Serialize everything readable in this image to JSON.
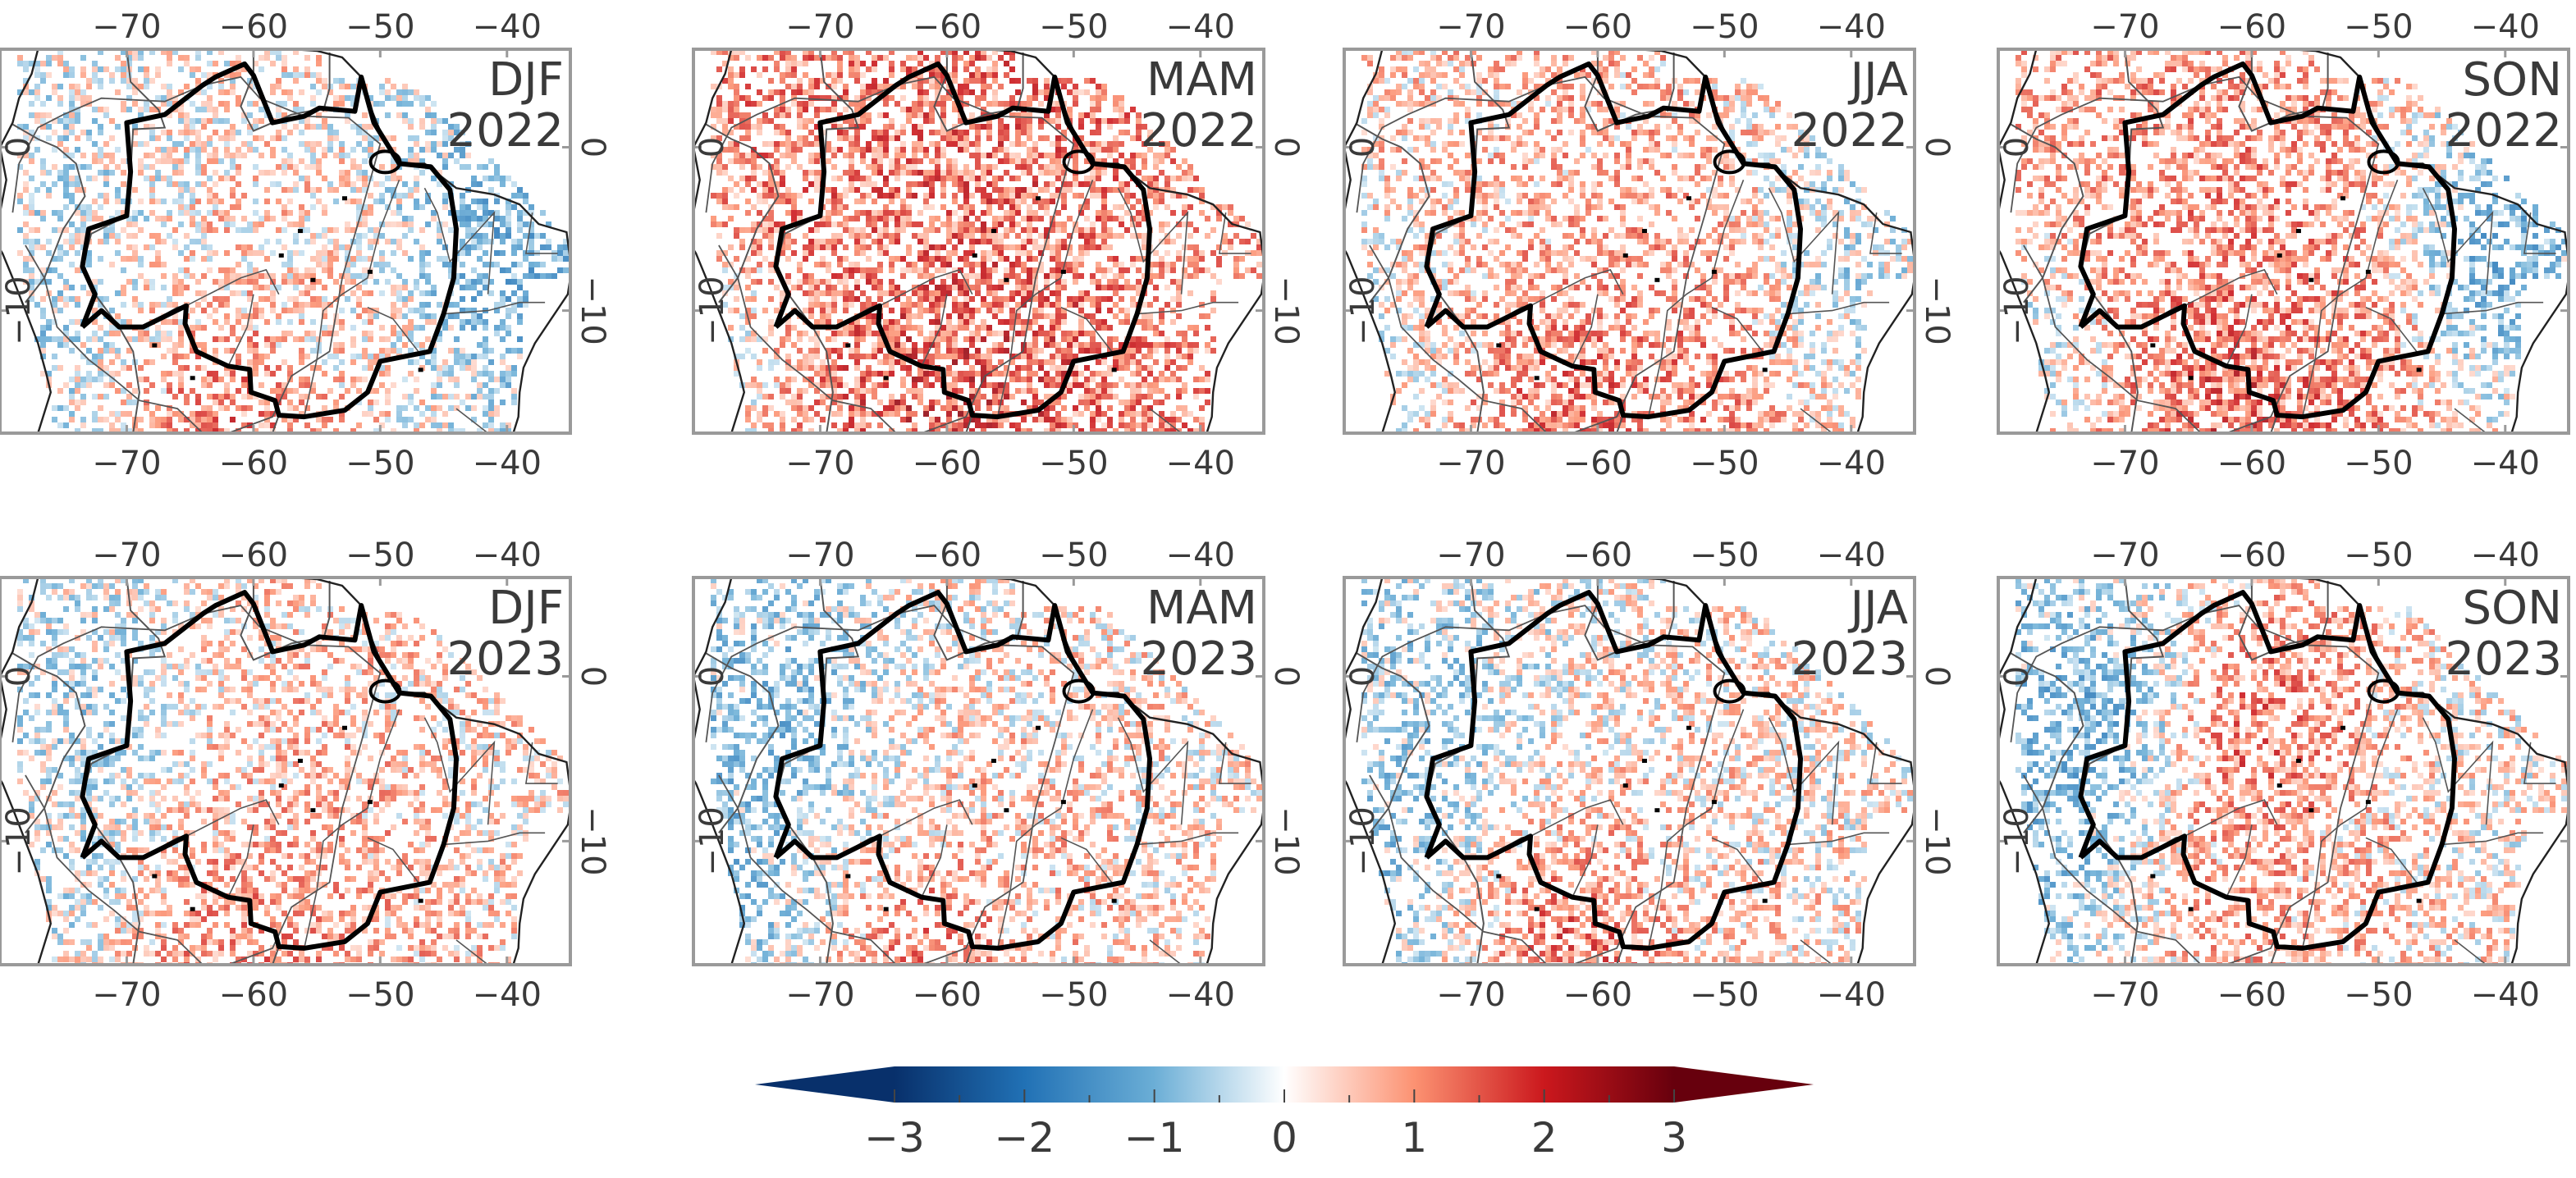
{
  "figure": {
    "panels": [
      {
        "season": "DJF",
        "year": "2022",
        "pattern": [
          -0.3,
          0.4,
          -1.2,
          1.6,
          0.3,
          -0.6
        ],
        "seed": 11
      },
      {
        "season": "MAM",
        "year": "2022",
        "pattern": [
          1.2,
          1.3,
          0.5,
          2.0,
          1.5,
          -0.4
        ],
        "seed": 23
      },
      {
        "season": "JJA",
        "year": "2022",
        "pattern": [
          0.4,
          0.6,
          -0.6,
          1.6,
          1.1,
          -0.3
        ],
        "seed": 37
      },
      {
        "season": "SON",
        "year": "2022",
        "pattern": [
          0.8,
          1.0,
          -1.4,
          1.9,
          1.2,
          -0.4
        ],
        "seed": 41
      },
      {
        "season": "DJF",
        "year": "2023",
        "pattern": [
          -0.6,
          0.5,
          0.2,
          1.3,
          0.7,
          -0.4
        ],
        "seed": 53
      },
      {
        "season": "MAM",
        "year": "2023",
        "pattern": [
          -0.9,
          0.3,
          0.2,
          1.4,
          0.5,
          -0.9
        ],
        "seed": 67
      },
      {
        "season": "JJA",
        "year": "2023",
        "pattern": [
          -0.7,
          0.2,
          0.1,
          1.8,
          0.3,
          -0.8
        ],
        "seed": 71
      },
      {
        "season": "SON",
        "year": "2023",
        "pattern": [
          -1.3,
          1.8,
          0.0,
          0.8,
          0.4,
          -0.8
        ],
        "seed": 83
      }
    ],
    "lon_ticks": [
      "−70",
      "−60",
      "−50",
      "−40"
    ],
    "lat_ticks": [
      "0",
      "−10"
    ],
    "lon_values": [
      -70,
      -60,
      -50,
      -40
    ],
    "lat_values": [
      0,
      -10
    ],
    "lon_range": [
      -80,
      -35
    ],
    "lat_range": [
      -17.5,
      6
    ],
    "colorbar": {
      "ticks": [
        "−3",
        "−2",
        "−1",
        "0",
        "1",
        "2",
        "3"
      ],
      "tick_values": [
        -3,
        -2,
        -1,
        0,
        1,
        2,
        3
      ],
      "range": [
        -3,
        3
      ],
      "extend": "both",
      "colormap": "RdBu_r",
      "colors": [
        "#08306b",
        "#2171b5",
        "#6baed6",
        "#ffffff",
        "#fc9272",
        "#cb181d",
        "#67000d"
      ]
    }
  }
}
